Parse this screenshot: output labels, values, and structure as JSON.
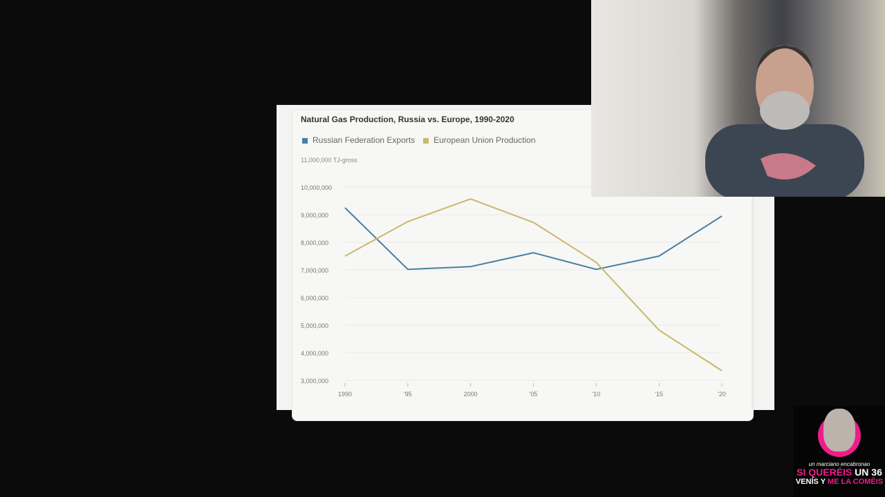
{
  "chart_data": {
    "type": "line",
    "title": "Natural Gas Production, Russia vs. Europe, 1990-2020",
    "ylabel": "TJ-gross",
    "top_tick_label": "11,000,000 TJ-gross",
    "ylim": [
      3000000,
      11000000
    ],
    "yticks": [
      "3,000,000",
      "4,000,000",
      "5,000,000",
      "6,000,000",
      "7,000,000",
      "8,000,000",
      "9,000,000",
      "10,000,000"
    ],
    "x": [
      1990,
      1995,
      2000,
      2005,
      2010,
      2015,
      2020
    ],
    "xtick_labels": [
      "1990",
      "'95",
      "2000",
      "'05",
      "'10",
      "'15",
      "'20"
    ],
    "grid": true,
    "legend_placement": "top-left",
    "series": [
      {
        "name": "Russian Federation Exports",
        "color": "#4a7fa0",
        "values": [
          9250000,
          7020000,
          7120000,
          7620000,
          7020000,
          7500000,
          8950000
        ]
      },
      {
        "name": "European Union Production",
        "color": "#c9b86a",
        "values": [
          7500000,
          8750000,
          9570000,
          8720000,
          7270000,
          4820000,
          3350000
        ]
      }
    ]
  },
  "overlay": {
    "badge_line1": "un marciano encabronao",
    "badge_line2a": "SI QUERÉIS",
    "badge_line2b": "UN 36",
    "badge_line3a": "VENÍS Y",
    "badge_line3b": "ME LA COMÉIS"
  }
}
